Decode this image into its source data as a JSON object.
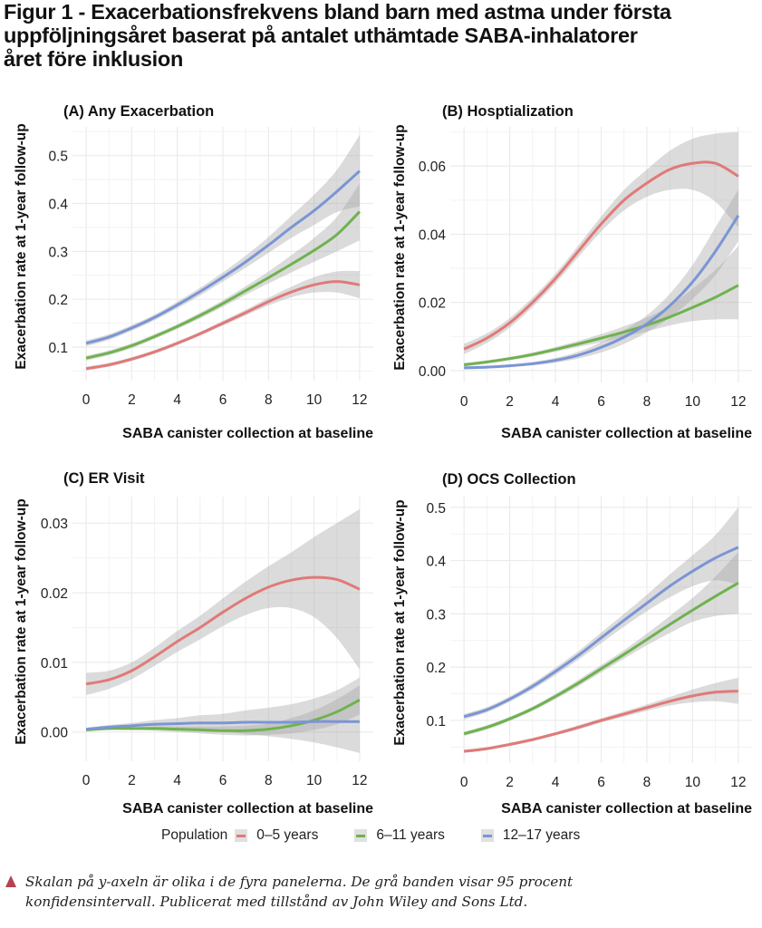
{
  "figure": {
    "title_lines": [
      "Figur 1 - Exacerbationsfrekvens bland barn med astma under första",
      "uppföljningsåret baserat på antalet uthämtade SABA-inhalatorer",
      "året före inklusion"
    ],
    "legend": {
      "title": "Population",
      "items": [
        {
          "label": "0–5 years",
          "color": "#e07a78"
        },
        {
          "label": "6–11 years",
          "color": "#6fb24f"
        },
        {
          "label": "12–17 years",
          "color": "#7b95d4"
        }
      ]
    },
    "note_lines": [
      "Skalan på y-axeln är olika i de fyra panelerna. De grå banden visar 95 procent",
      "konfidensintervall. Publicerat med tillstånd av John Wiley and Sons Ltd."
    ],
    "note_marker_color": "#b5424e",
    "ci_band_color": "#d9d9d9"
  },
  "chart_data": [
    {
      "type": "line",
      "title": "(A) Any Exacerbation",
      "xlabel": "SABA canister collection at baseline",
      "ylabel": "Exacerbation rate at 1-year follow-up",
      "x": [
        0,
        1,
        2,
        3,
        4,
        5,
        6,
        7,
        8,
        9,
        10,
        11,
        12
      ],
      "xticks": [
        0,
        2,
        4,
        6,
        8,
        10,
        12
      ],
      "xtick_labels": [
        "0",
        "2",
        "4",
        "6",
        "8",
        "10",
        "12"
      ],
      "yticks": [
        0.1,
        0.2,
        0.3,
        0.4,
        0.5
      ],
      "ytick_labels": [
        "0.1",
        "0.2",
        "0.3",
        "0.4",
        "0.5"
      ],
      "xlim": [
        -0.6,
        12.6
      ],
      "ylim": [
        0.03,
        0.56
      ],
      "grid": true,
      "series": [
        {
          "name": "0–5 years",
          "color": "#e07a78",
          "values": [
            0.055,
            0.063,
            0.075,
            0.09,
            0.108,
            0.128,
            0.15,
            0.172,
            0.195,
            0.215,
            0.23,
            0.237,
            0.23
          ],
          "ci_lower": [
            0.051,
            0.059,
            0.071,
            0.086,
            0.104,
            0.124,
            0.145,
            0.166,
            0.187,
            0.204,
            0.214,
            0.214,
            0.202
          ],
          "ci_upper": [
            0.059,
            0.067,
            0.079,
            0.094,
            0.112,
            0.132,
            0.155,
            0.178,
            0.203,
            0.226,
            0.246,
            0.258,
            0.259
          ]
        },
        {
          "name": "6–11 years",
          "color": "#6fb24f",
          "values": [
            0.077,
            0.088,
            0.103,
            0.122,
            0.143,
            0.166,
            0.191,
            0.218,
            0.245,
            0.273,
            0.302,
            0.335,
            0.383
          ],
          "ci_lower": [
            0.072,
            0.083,
            0.098,
            0.117,
            0.138,
            0.16,
            0.184,
            0.209,
            0.233,
            0.256,
            0.278,
            0.3,
            0.323
          ],
          "ci_upper": [
            0.082,
            0.093,
            0.108,
            0.127,
            0.148,
            0.172,
            0.198,
            0.227,
            0.258,
            0.292,
            0.328,
            0.372,
            0.442
          ]
        },
        {
          "name": "12–17 years",
          "color": "#7b95d4",
          "values": [
            0.108,
            0.121,
            0.14,
            0.162,
            0.188,
            0.216,
            0.246,
            0.278,
            0.313,
            0.35,
            0.385,
            0.425,
            0.468
          ],
          "ci_lower": [
            0.102,
            0.115,
            0.134,
            0.156,
            0.181,
            0.208,
            0.237,
            0.266,
            0.297,
            0.328,
            0.355,
            0.382,
            0.394
          ],
          "ci_upper": [
            0.114,
            0.127,
            0.146,
            0.168,
            0.195,
            0.224,
            0.256,
            0.291,
            0.33,
            0.374,
            0.418,
            0.47,
            0.543
          ]
        }
      ]
    },
    {
      "type": "line",
      "title": "(B) Hosptialization",
      "xlabel": "SABA canister collection at baseline",
      "ylabel": "Exacerbation rate at 1-year follow-up",
      "x": [
        0,
        1,
        2,
        3,
        4,
        5,
        6,
        7,
        8,
        9,
        10,
        11,
        12
      ],
      "xticks": [
        0,
        2,
        4,
        6,
        8,
        10,
        12
      ],
      "xtick_labels": [
        "0",
        "2",
        "4",
        "6",
        "8",
        "10",
        "12"
      ],
      "yticks": [
        0.0,
        0.02,
        0.04,
        0.06
      ],
      "ytick_labels": [
        "0.00",
        "0.02",
        "0.04",
        "0.06"
      ],
      "xlim": [
        -0.6,
        12.6
      ],
      "ylim": [
        -0.0035,
        0.0715
      ],
      "grid": true,
      "series": [
        {
          "name": "0–5 years",
          "color": "#e07a78",
          "values": [
            0.0063,
            0.0095,
            0.014,
            0.02,
            0.027,
            0.035,
            0.043,
            0.05,
            0.055,
            0.059,
            0.0608,
            0.0608,
            0.057
          ],
          "ci_lower": [
            0.0048,
            0.0081,
            0.0126,
            0.0186,
            0.0256,
            0.0333,
            0.0408,
            0.047,
            0.051,
            0.053,
            0.053,
            0.0495,
            0.042
          ],
          "ci_upper": [
            0.0078,
            0.0109,
            0.0154,
            0.0214,
            0.0284,
            0.0367,
            0.0452,
            0.053,
            0.059,
            0.0645,
            0.068,
            0.0695,
            0.07
          ]
        },
        {
          "name": "6–11 years",
          "color": "#6fb24f",
          "values": [
            0.0017,
            0.0025,
            0.0035,
            0.0047,
            0.0062,
            0.0078,
            0.0095,
            0.0113,
            0.0133,
            0.0157,
            0.0185,
            0.0215,
            0.025
          ],
          "ci_lower": [
            0.0012,
            0.002,
            0.003,
            0.0041,
            0.0055,
            0.0069,
            0.0083,
            0.0098,
            0.0115,
            0.0132,
            0.0145,
            0.015,
            0.015
          ],
          "ci_upper": [
            0.0022,
            0.003,
            0.004,
            0.0053,
            0.0069,
            0.0087,
            0.0107,
            0.013,
            0.0155,
            0.019,
            0.024,
            0.0295,
            0.0365
          ]
        },
        {
          "name": "12–17 years",
          "color": "#7b95d4",
          "values": [
            0.0008,
            0.001,
            0.0014,
            0.002,
            0.003,
            0.0045,
            0.0068,
            0.0098,
            0.0137,
            0.019,
            0.026,
            0.035,
            0.0455
          ],
          "ci_lower": [
            0.0004,
            0.0006,
            0.001,
            0.0015,
            0.0023,
            0.0035,
            0.0053,
            0.0078,
            0.0112,
            0.0155,
            0.021,
            0.028,
            0.038
          ],
          "ci_upper": [
            0.0012,
            0.0014,
            0.0018,
            0.0025,
            0.0037,
            0.0055,
            0.0083,
            0.0118,
            0.0162,
            0.0225,
            0.031,
            0.042,
            0.053
          ]
        }
      ]
    },
    {
      "type": "line",
      "title": "(C) ER Visit",
      "xlabel": "SABA canister collection at baseline",
      "ylabel": "Exacerbation rate at 1-year follow-up",
      "x": [
        0,
        1,
        2,
        3,
        4,
        5,
        6,
        7,
        8,
        9,
        10,
        11,
        12
      ],
      "xticks": [
        0,
        2,
        4,
        6,
        8,
        10,
        12
      ],
      "xtick_labels": [
        "0",
        "2",
        "4",
        "6",
        "8",
        "10",
        "12"
      ],
      "yticks": [
        0.0,
        0.01,
        0.02,
        0.03
      ],
      "ytick_labels": [
        "0.00",
        "0.01",
        "0.02",
        "0.03"
      ],
      "xlim": [
        -0.6,
        12.6
      ],
      "ylim": [
        -0.0042,
        0.0338
      ],
      "grid": true,
      "series": [
        {
          "name": "0–5 years",
          "color": "#e07a78",
          "values": [
            0.0069,
            0.0075,
            0.0088,
            0.0108,
            0.013,
            0.015,
            0.0172,
            0.0192,
            0.0208,
            0.0218,
            0.0222,
            0.0219,
            0.0205
          ],
          "ci_lower": [
            0.0053,
            0.0062,
            0.0076,
            0.0095,
            0.0115,
            0.0133,
            0.0152,
            0.0168,
            0.0178,
            0.0178,
            0.0165,
            0.0135,
            0.009
          ],
          "ci_upper": [
            0.0085,
            0.0088,
            0.01,
            0.0121,
            0.0145,
            0.0167,
            0.0192,
            0.0216,
            0.0238,
            0.0258,
            0.028,
            0.03,
            0.032
          ]
        },
        {
          "name": "6–11 years",
          "color": "#6fb24f",
          "values": [
            0.0003,
            0.0005,
            0.0005,
            0.0005,
            0.0004,
            0.0003,
            0.0002,
            0.0002,
            0.0004,
            0.0009,
            0.0017,
            0.0029,
            0.0046
          ],
          "ci_lower": [
            0.0001,
            0.0003,
            0.0003,
            0.0002,
            0.0,
            -0.0002,
            -0.0004,
            -0.0005,
            -0.0004,
            -0.0002,
            0.0003,
            0.0011,
            0.0025
          ],
          "ci_upper": [
            0.0005,
            0.0007,
            0.0007,
            0.0008,
            0.0008,
            0.0008,
            0.0008,
            0.0009,
            0.0012,
            0.002,
            0.0031,
            0.0047,
            0.0067
          ]
        },
        {
          "name": "12–17 years",
          "color": "#7b95d4",
          "values": [
            0.0004,
            0.0007,
            0.0009,
            0.0011,
            0.0012,
            0.0013,
            0.0013,
            0.0014,
            0.0014,
            0.0014,
            0.0015,
            0.0015,
            0.0015
          ],
          "ci_lower": [
            0.0002,
            0.0004,
            0.0005,
            0.0005,
            0.0004,
            0.0002,
            0.0,
            -0.0003,
            -0.0006,
            -0.001,
            -0.0015,
            -0.0022,
            -0.003
          ],
          "ci_upper": [
            0.0006,
            0.001,
            0.0013,
            0.0017,
            0.002,
            0.0024,
            0.0026,
            0.0031,
            0.0035,
            0.004,
            0.0048,
            0.006,
            0.0078
          ]
        }
      ]
    },
    {
      "type": "line",
      "title": "(D) OCS Collection",
      "xlabel": "SABA canister collection at baseline",
      "ylabel": "Exacerbation rate at 1-year follow-up",
      "x": [
        0,
        1,
        2,
        3,
        4,
        5,
        6,
        7,
        8,
        9,
        10,
        11,
        12
      ],
      "xticks": [
        0,
        2,
        4,
        6,
        8,
        10,
        12
      ],
      "xtick_labels": [
        "0",
        "2",
        "4",
        "6",
        "8",
        "10",
        "12"
      ],
      "yticks": [
        0.1,
        0.2,
        0.3,
        0.4,
        0.5
      ],
      "ytick_labels": [
        "0.1",
        "0.2",
        "0.3",
        "0.4",
        "0.5"
      ],
      "xlim": [
        -0.6,
        12.6
      ],
      "ylim": [
        0.02,
        0.52
      ],
      "grid": true,
      "series": [
        {
          "name": "0–5 years",
          "color": "#e07a78",
          "values": [
            0.042,
            0.047,
            0.055,
            0.064,
            0.075,
            0.087,
            0.1,
            0.112,
            0.124,
            0.136,
            0.146,
            0.153,
            0.155
          ],
          "ci_lower": [
            0.039,
            0.044,
            0.052,
            0.061,
            0.072,
            0.083,
            0.096,
            0.107,
            0.118,
            0.128,
            0.134,
            0.136,
            0.131
          ],
          "ci_upper": [
            0.045,
            0.05,
            0.058,
            0.067,
            0.078,
            0.091,
            0.104,
            0.117,
            0.13,
            0.144,
            0.158,
            0.17,
            0.18
          ]
        },
        {
          "name": "6–11 years",
          "color": "#6fb24f",
          "values": [
            0.075,
            0.087,
            0.103,
            0.122,
            0.145,
            0.17,
            0.197,
            0.224,
            0.252,
            0.28,
            0.307,
            0.333,
            0.358
          ],
          "ci_lower": [
            0.071,
            0.083,
            0.099,
            0.118,
            0.14,
            0.164,
            0.19,
            0.216,
            0.241,
            0.264,
            0.285,
            0.296,
            0.3
          ],
          "ci_upper": [
            0.079,
            0.091,
            0.107,
            0.126,
            0.15,
            0.176,
            0.204,
            0.232,
            0.263,
            0.296,
            0.33,
            0.37,
            0.416
          ]
        },
        {
          "name": "12–17 years",
          "color": "#7b95d4",
          "values": [
            0.107,
            0.12,
            0.14,
            0.164,
            0.192,
            0.222,
            0.255,
            0.288,
            0.32,
            0.352,
            0.38,
            0.405,
            0.425
          ],
          "ci_lower": [
            0.102,
            0.115,
            0.135,
            0.158,
            0.185,
            0.214,
            0.245,
            0.276,
            0.305,
            0.331,
            0.352,
            0.363,
            0.355
          ],
          "ci_upper": [
            0.112,
            0.125,
            0.145,
            0.17,
            0.199,
            0.23,
            0.265,
            0.3,
            0.336,
            0.374,
            0.41,
            0.448,
            0.5
          ]
        }
      ]
    }
  ]
}
